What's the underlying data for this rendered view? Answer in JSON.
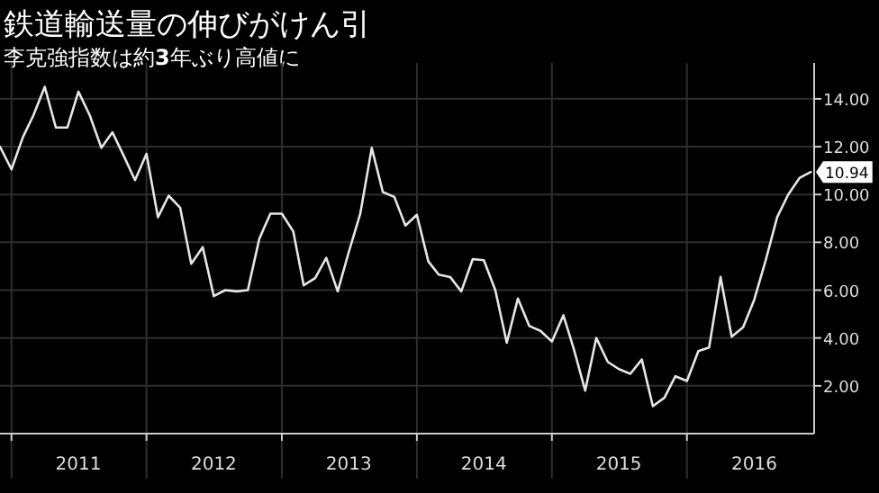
{
  "chart_data": {
    "type": "line",
    "title": "鉄道輸送量の伸びがけん引",
    "subtitle": "李克強指数は約**3**年ぶり高値に",
    "x": [
      "2010-12",
      "2011-01",
      "2011-02",
      "2011-03",
      "2011-04",
      "2011-05",
      "2011-06",
      "2011-07",
      "2011-08",
      "2011-09",
      "2011-10",
      "2011-11",
      "2011-12",
      "2012-01",
      "2012-02",
      "2012-03",
      "2012-04",
      "2012-05",
      "2012-06",
      "2012-07",
      "2012-08",
      "2012-09",
      "2012-10",
      "2012-11",
      "2012-12",
      "2013-01",
      "2013-02",
      "2013-03",
      "2013-04",
      "2013-05",
      "2013-06",
      "2013-07",
      "2013-08",
      "2013-09",
      "2013-10",
      "2013-11",
      "2013-12",
      "2014-01",
      "2014-02",
      "2014-03",
      "2014-04",
      "2014-05",
      "2014-06",
      "2014-07",
      "2014-08",
      "2014-09",
      "2014-10",
      "2014-11",
      "2014-12",
      "2015-01",
      "2015-02",
      "2015-03",
      "2015-04",
      "2015-05",
      "2015-06",
      "2015-07",
      "2015-08",
      "2015-09",
      "2015-10",
      "2015-11",
      "2015-12",
      "2016-01",
      "2016-02",
      "2016-03",
      "2016-04",
      "2016-05",
      "2016-06",
      "2016-07",
      "2016-08",
      "2016-09",
      "2016-10",
      "2016-11",
      "2016-12"
    ],
    "series": [
      {
        "color": "#e6e6e6",
        "values": [
          12.0,
          11.05,
          12.4,
          13.3,
          14.5,
          12.8,
          12.8,
          14.3,
          13.3,
          11.95,
          12.6,
          11.6,
          10.6,
          11.7,
          9.05,
          9.95,
          9.45,
          7.1,
          7.8,
          5.75,
          6.0,
          5.95,
          6.0,
          8.15,
          9.2,
          9.2,
          8.45,
          6.2,
          6.5,
          7.35,
          5.95,
          7.6,
          9.2,
          11.95,
          10.1,
          9.9,
          8.7,
          9.15,
          7.2,
          6.65,
          6.55,
          5.95,
          7.3,
          7.25,
          6.0,
          3.8,
          5.65,
          4.5,
          4.3,
          3.85,
          4.95,
          3.55,
          1.8,
          4.0,
          3.0,
          2.7,
          2.5,
          3.1,
          1.15,
          1.5,
          2.4,
          2.2,
          3.45,
          3.6,
          6.55,
          4.05,
          4.45,
          5.6,
          7.25,
          9.05,
          10.0,
          10.7,
          10.94
        ]
      }
    ],
    "xlim": [
      "2010-12-01",
      "2016-12-10"
    ],
    "xticks": [
      {
        "value": "2011-01-01",
        "label": null
      },
      {
        "value": "2011-07-01",
        "label": "2011"
      },
      {
        "value": "2012-01-01",
        "label": null
      },
      {
        "value": "2012-07-01",
        "label": "2012"
      },
      {
        "value": "2013-01-01",
        "label": null
      },
      {
        "value": "2013-07-01",
        "label": "2013"
      },
      {
        "value": "2014-01-01",
        "label": null
      },
      {
        "value": "2014-07-01",
        "label": "2014"
      },
      {
        "value": "2015-01-01",
        "label": null
      },
      {
        "value": "2015-07-01",
        "label": "2015"
      },
      {
        "value": "2016-01-01",
        "label": null
      },
      {
        "value": "2016-07-01",
        "label": "2016"
      }
    ],
    "ylim": [
      0,
      15.5
    ],
    "yticks": [
      {
        "value": 2,
        "label": "2.00"
      },
      {
        "value": 4,
        "label": "4.00"
      },
      {
        "value": 6,
        "label": "6.00"
      },
      {
        "value": 8,
        "label": "8.00"
      },
      {
        "value": 10,
        "label": "10.00"
      },
      {
        "value": 12,
        "label": "12.00"
      },
      {
        "value": 14,
        "label": "14.00"
      }
    ],
    "grid": true,
    "annotations": [
      {
        "text": "10.94",
        "x": "2016-12",
        "y": 10.94
      }
    ]
  }
}
